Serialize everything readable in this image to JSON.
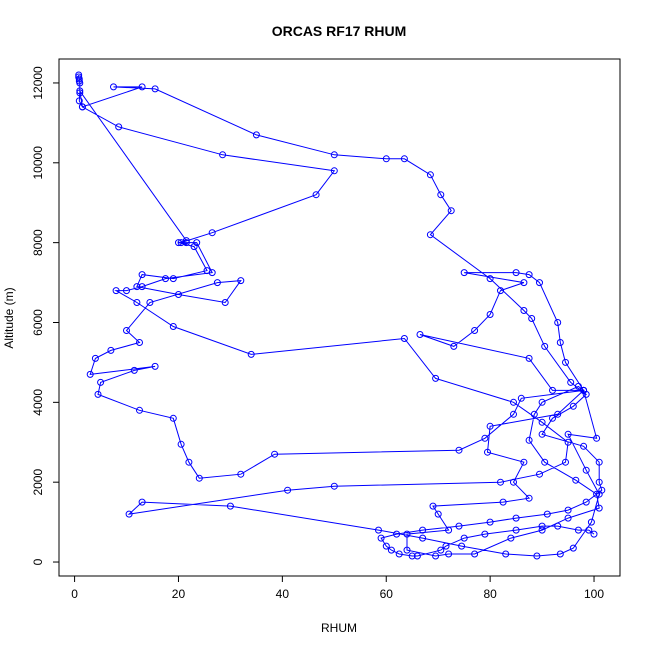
{
  "chart_data": {
    "type": "line",
    "title": "ORCAS RF17 RHUM",
    "xlabel": "RHUM",
    "ylabel": "Altitude (m)",
    "xlim": [
      -3,
      105
    ],
    "ylim": [
      -350,
      12600
    ],
    "x_ticks": [
      0,
      20,
      40,
      60,
      80,
      100
    ],
    "y_ticks": [
      0,
      2000,
      4000,
      6000,
      8000,
      10000,
      12000
    ],
    "marker": "open-circle",
    "line_style": "point-and-line",
    "series_color": "#0000ff",
    "grid": false,
    "legend": "none",
    "points": [
      [
        0.8,
        12200
      ],
      [
        0.8,
        12150
      ],
      [
        0.9,
        12100
      ],
      [
        0.9,
        12050
      ],
      [
        1.0,
        12000
      ],
      [
        1.0,
        11750
      ],
      [
        0.9,
        11550
      ],
      [
        1.5,
        11400
      ],
      [
        8.5,
        10900
      ],
      [
        28.5,
        10200
      ],
      [
        50,
        9800
      ],
      [
        46.5,
        9200
      ],
      [
        26.5,
        8250
      ],
      [
        20.5,
        8000
      ],
      [
        21.5,
        8000
      ],
      [
        23.5,
        8000
      ],
      [
        26.5,
        7250
      ],
      [
        17.5,
        7100
      ],
      [
        13,
        6900
      ],
      [
        10,
        6800
      ],
      [
        8,
        6800
      ],
      [
        12,
        6500
      ],
      [
        19,
        5900
      ],
      [
        34,
        5200
      ],
      [
        63.5,
        5600
      ],
      [
        69.5,
        4600
      ],
      [
        84.5,
        4000
      ],
      [
        90,
        3500
      ],
      [
        95,
        3000
      ],
      [
        94.5,
        2500
      ],
      [
        89.5,
        2200
      ],
      [
        82,
        2000
      ],
      [
        50,
        1900
      ],
      [
        41,
        1800
      ],
      [
        10.5,
        1200
      ],
      [
        13,
        1500
      ],
      [
        30,
        1400
      ],
      [
        58.5,
        800
      ],
      [
        67,
        600
      ],
      [
        74.5,
        400
      ],
      [
        83,
        200
      ],
      [
        89,
        150
      ],
      [
        93.5,
        200
      ],
      [
        96,
        350
      ],
      [
        99.5,
        1000
      ],
      [
        101,
        1700
      ],
      [
        98.5,
        2300
      ],
      [
        95,
        3200
      ],
      [
        100.5,
        3100
      ],
      [
        98,
        4300
      ],
      [
        94.5,
        5000
      ],
      [
        93.5,
        5500
      ],
      [
        93,
        6000
      ],
      [
        89.5,
        7000
      ],
      [
        87.5,
        7200
      ],
      [
        85,
        7250
      ],
      [
        75,
        7250
      ],
      [
        86.5,
        7000
      ],
      [
        82,
        6800
      ],
      [
        80,
        6200
      ],
      [
        77,
        5800
      ],
      [
        73,
        5400
      ],
      [
        66.5,
        5700
      ],
      [
        87.5,
        5100
      ],
      [
        92,
        4300
      ],
      [
        98,
        4300
      ],
      [
        93,
        3700
      ],
      [
        80,
        3400
      ],
      [
        79.5,
        2750
      ],
      [
        86.5,
        2500
      ],
      [
        84.5,
        2000
      ],
      [
        87.5,
        1600
      ],
      [
        82.5,
        1500
      ],
      [
        69,
        1400
      ],
      [
        70,
        1200
      ],
      [
        72,
        800
      ],
      [
        64,
        700
      ],
      [
        64,
        300
      ],
      [
        69.5,
        150
      ],
      [
        72,
        200
      ],
      [
        77,
        200
      ],
      [
        84,
        600
      ],
      [
        90,
        800
      ],
      [
        95,
        1100
      ],
      [
        101,
        1350
      ],
      [
        100.5,
        1700
      ],
      [
        96.5,
        2050
      ],
      [
        90.5,
        2500
      ],
      [
        87.5,
        3050
      ],
      [
        88.5,
        3700
      ],
      [
        90,
        4000
      ],
      [
        97,
        4400
      ],
      [
        98,
        4300
      ],
      [
        86,
        4100
      ],
      [
        84.5,
        3700
      ],
      [
        79,
        3100
      ],
      [
        74,
        2800
      ],
      [
        38.5,
        2700
      ],
      [
        32,
        2200
      ],
      [
        24,
        2100
      ],
      [
        22,
        2500
      ],
      [
        20.5,
        2950
      ],
      [
        19,
        3600
      ],
      [
        12.5,
        3800
      ],
      [
        4.5,
        4200
      ],
      [
        5,
        4500
      ],
      [
        11.5,
        4800
      ],
      [
        15.5,
        4900
      ],
      [
        3,
        4700
      ],
      [
        4,
        5100
      ],
      [
        7,
        5300
      ],
      [
        12.5,
        5500
      ],
      [
        10,
        5800
      ],
      [
        14.5,
        6500
      ],
      [
        27.5,
        7000
      ],
      [
        32,
        7050
      ],
      [
        29,
        6500
      ],
      [
        20,
        6700
      ],
      [
        12,
        6900
      ],
      [
        13,
        7200
      ],
      [
        19,
        7100
      ],
      [
        25.5,
        7300
      ],
      [
        23,
        7900
      ],
      [
        20,
        8000
      ],
      [
        21.5,
        8050
      ],
      [
        1,
        11800
      ],
      [
        1.5,
        11400
      ],
      [
        13,
        11900
      ],
      [
        7.5,
        11900
      ],
      [
        15.5,
        11850
      ],
      [
        35,
        10700
      ],
      [
        50,
        10200
      ],
      [
        60,
        10100
      ],
      [
        63.5,
        10100
      ],
      [
        68.5,
        9700
      ],
      [
        70.5,
        9200
      ],
      [
        72.5,
        8800
      ],
      [
        68.5,
        8200
      ],
      [
        80,
        7100
      ],
      [
        86.5,
        6300
      ],
      [
        88,
        6100
      ],
      [
        90.5,
        5400
      ],
      [
        95.5,
        4500
      ],
      [
        98.5,
        4200
      ],
      [
        96,
        3900
      ],
      [
        92,
        3600
      ],
      [
        90,
        3200
      ],
      [
        98,
        2900
      ],
      [
        101,
        2500
      ],
      [
        101,
        2000
      ],
      [
        101.5,
        1800
      ],
      [
        98.5,
        1500
      ],
      [
        95,
        1300
      ],
      [
        91,
        1200
      ],
      [
        85,
        1100
      ],
      [
        80,
        1000
      ],
      [
        74,
        900
      ],
      [
        67,
        800
      ],
      [
        62,
        700
      ],
      [
        59,
        600
      ],
      [
        60,
        400
      ],
      [
        61,
        300
      ],
      [
        62.5,
        200
      ],
      [
        65,
        150
      ],
      [
        66,
        150
      ],
      [
        70.5,
        300
      ],
      [
        71.5,
        400
      ],
      [
        75,
        600
      ],
      [
        79,
        700
      ],
      [
        85,
        800
      ],
      [
        90,
        900
      ],
      [
        93,
        900
      ],
      [
        97,
        800
      ],
      [
        99,
        800
      ],
      [
        100,
        700
      ]
    ]
  }
}
